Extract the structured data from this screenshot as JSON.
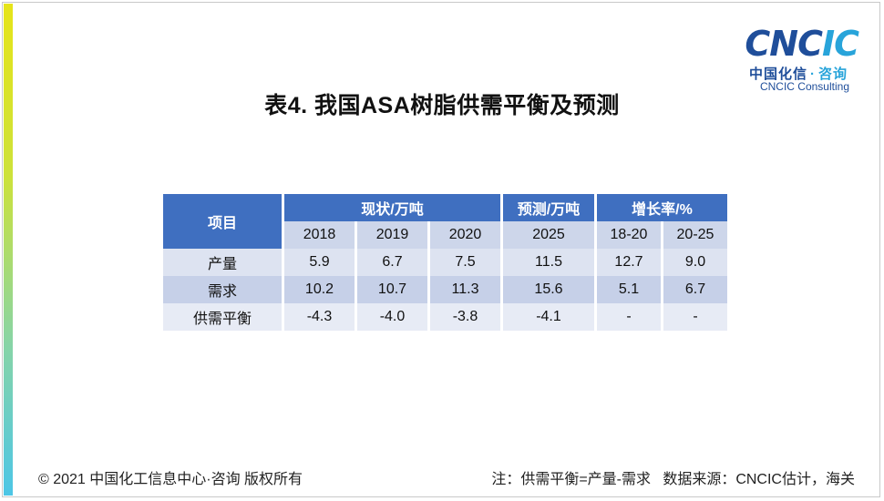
{
  "logo": {
    "word_part1": "CNC",
    "word_part2": "IC",
    "cn_name": "中国化信",
    "cn_dot": "·",
    "cn_suffix": "咨询",
    "en_name": "CNCIC Consulting"
  },
  "title": "表4. 我国ASA树脂供需平衡及预测",
  "table": {
    "item_header": "项目",
    "group_headers": [
      "现状/万吨",
      "预测/万吨",
      "增长率/%"
    ],
    "sub_headers": [
      "2018",
      "2019",
      "2020",
      "2025",
      "18-20",
      "20-25"
    ],
    "rows": [
      {
        "label": "产量",
        "values": [
          "5.9",
          "6.7",
          "7.5",
          "11.5",
          "12.7",
          "9.0"
        ]
      },
      {
        "label": "需求",
        "values": [
          "10.2",
          "10.7",
          "11.3",
          "15.6",
          "5.1",
          "6.7"
        ]
      },
      {
        "label": "供需平衡",
        "values": [
          "-4.3",
          "-4.0",
          "-3.8",
          "-4.1",
          "-",
          "-"
        ]
      }
    ]
  },
  "footer": {
    "copyright": "© 2021 中国化工信息中心·咨询 版权所有",
    "note": "注：供需平衡=产量-需求   数据来源：CNCIC估计，海关"
  },
  "colors": {
    "header_blue": "#3f6fc0",
    "logo_dark_blue": "#1f4e9a",
    "logo_light_blue": "#28a4da"
  }
}
